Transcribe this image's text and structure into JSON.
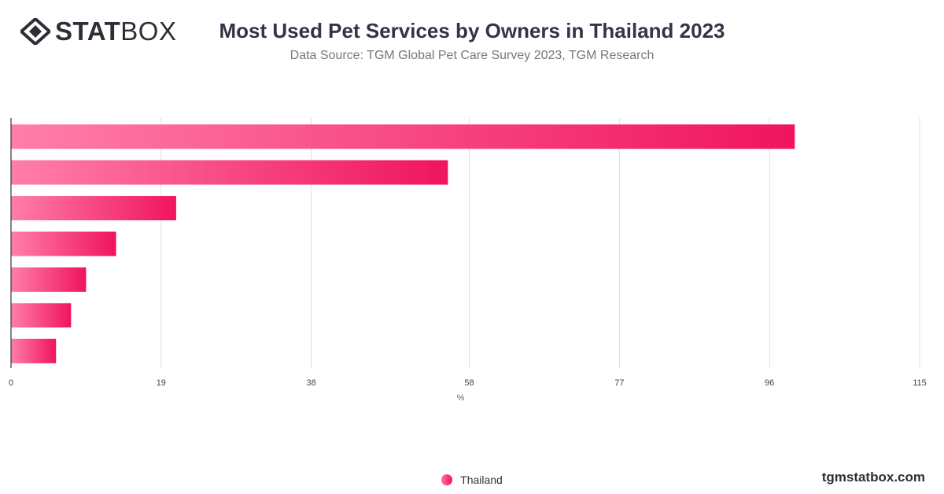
{
  "logo": {
    "text_bold": "STAT",
    "text_light": "BOX",
    "icon": "diamond-grid-logo-icon"
  },
  "title": "Most Used Pet Services by Owners in Thailand 2023",
  "subtitle": "Data Source: TGM Global Pet Care Survey 2023, TGM Research",
  "brand": "tgmstatbox.com",
  "colors": {
    "bar_start": "#ff7eaa",
    "bar_end": "#f0145f",
    "grid": "#e0e0e0",
    "axis": "#333333"
  },
  "chart_data": {
    "type": "bar",
    "orientation": "horizontal",
    "categories": [
      "",
      "",
      "",
      "",
      "",
      "",
      ""
    ],
    "series": [
      {
        "name": "Thailand",
        "values": [
          99.2,
          55.3,
          20.9,
          13.3,
          9.5,
          7.6,
          5.7
        ]
      }
    ],
    "xlabel": "%",
    "xlim": [
      0,
      115
    ],
    "xticks": [
      "0",
      "19",
      "38",
      "58",
      "77",
      "96",
      "115"
    ],
    "grid": true,
    "legend_position": "bottom-center"
  }
}
